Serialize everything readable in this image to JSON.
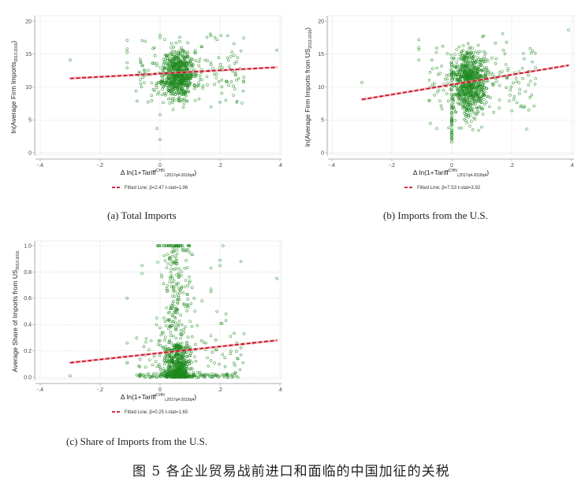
{
  "colors": {
    "marker": "#1f8a1f",
    "fit_line": "#c8102e",
    "fit_glow": "#f4a3a3",
    "grid": "#cfcfcf",
    "axis": "#999999"
  },
  "chart_data": [
    {
      "id": "a",
      "type": "scatter",
      "caption": "(a) Total Imports",
      "ylabel": "ln(Average Firm Imports",
      "ylabel_sub": "2013-2016",
      "ylabel_close": ")",
      "xlabel": "Δ ln(1+Tariff",
      "xlabel_sup": "CHN",
      "xlabel_sub": "i,2017q4-2018q4",
      "xlabel_close": ")",
      "xticks": [
        "-.4",
        "-.2",
        "0",
        ".2",
        ".4"
      ],
      "xtick_values": [
        -0.4,
        -0.2,
        0,
        0.2,
        0.4
      ],
      "yticks": [
        "0",
        "5",
        "10",
        "15",
        "20"
      ],
      "ytick_values": [
        0,
        5,
        10,
        15,
        20
      ],
      "xlim": [
        -0.4,
        0.4
      ],
      "ylim": [
        0,
        20
      ],
      "grid": true,
      "legend": "Fitted Line;  β=2.47  t-stat=1.96",
      "legend_position": "bottom",
      "fitted_line": {
        "x": [
          -0.3,
          0.39
        ],
        "y": [
          11.3,
          13.0
        ],
        "beta": 2.47,
        "t_stat": 1.96
      },
      "cluster": {
        "n": 650,
        "x_center": 0.06,
        "x_spread": 0.025,
        "y_center": 12.0,
        "y_spread": 1.8,
        "seed": 11
      },
      "spread": {
        "n": 160,
        "x_min": -0.08,
        "x_max": 0.28,
        "y_center": 12.5,
        "y_spread": 2.2,
        "seed": 23
      },
      "outliers": [
        [
          -0.3,
          14.1
        ],
        [
          -0.11,
          17.1
        ],
        [
          -0.11,
          15.8
        ],
        [
          -0.11,
          15.3
        ],
        [
          -0.11,
          13.7
        ],
        [
          -0.11,
          12.9
        ],
        [
          -0.08,
          9.4
        ],
        [
          -0.04,
          7.7
        ],
        [
          -0.01,
          3.7
        ],
        [
          0.0,
          2.0
        ],
        [
          0.0,
          5.8
        ],
        [
          0.0,
          17.9
        ],
        [
          0.0,
          17.5
        ],
        [
          0.17,
          17.8
        ],
        [
          0.19,
          17.2
        ],
        [
          0.17,
          7.0
        ],
        [
          0.2,
          7.7
        ],
        [
          0.39,
          15.6
        ],
        [
          0.27,
          15.5
        ],
        [
          0.25,
          9.7
        ],
        [
          0.13,
          8.2
        ],
        [
          0.24,
          15.3
        ],
        [
          0.28,
          11.5
        ]
      ]
    },
    {
      "id": "b",
      "type": "scatter",
      "caption": "(b) Imports from the U.S.",
      "ylabel": "ln(Average Firm Imports from US",
      "ylabel_sub": "2013-2016",
      "ylabel_close": ")",
      "xlabel": "Δ ln(1+Tariff",
      "xlabel_sup": "CHN",
      "xlabel_sub": "i,2017q4-2018q4",
      "xlabel_close": ")",
      "xticks": [
        "-.4",
        "-.2",
        "0",
        ".2",
        ".4"
      ],
      "xtick_values": [
        -0.4,
        -0.2,
        0,
        0.2,
        0.4
      ],
      "yticks": [
        "0",
        "5",
        "10",
        "15",
        "20"
      ],
      "ytick_values": [
        0,
        5,
        10,
        15,
        20
      ],
      "xlim": [
        -0.4,
        0.4
      ],
      "ylim": [
        0,
        20
      ],
      "grid": true,
      "legend": "Fitted Line;  β=7.53  t-stat=3.92",
      "legend_position": "bottom",
      "fitted_line": {
        "x": [
          -0.3,
          0.39
        ],
        "y": [
          8.1,
          13.3
        ],
        "beta": 7.53,
        "t_stat": 3.92
      },
      "cluster": {
        "n": 700,
        "x_center": 0.06,
        "x_spread": 0.025,
        "y_center": 10.8,
        "y_spread": 2.4,
        "seed": 37
      },
      "spread": {
        "n": 170,
        "x_min": -0.08,
        "x_max": 0.28,
        "y_center": 11.0,
        "y_spread": 2.6,
        "seed": 41
      },
      "column_zero": {
        "n": 60,
        "x": 0.0,
        "y_min": 1.5,
        "y_max": 15.5,
        "seed": 53
      },
      "outliers": [
        [
          -0.3,
          10.7
        ],
        [
          -0.11,
          17.2
        ],
        [
          -0.11,
          16.0
        ],
        [
          -0.11,
          15.7
        ],
        [
          -0.11,
          14.1
        ],
        [
          -0.05,
          15.9
        ],
        [
          -0.03,
          16.2
        ],
        [
          -0.05,
          3.7
        ],
        [
          -0.01,
          3.8
        ],
        [
          0.17,
          18.1
        ],
        [
          0.39,
          18.7
        ],
        [
          0.27,
          15.5
        ],
        [
          0.25,
          3.6
        ],
        [
          0.05,
          4.6
        ],
        [
          0.09,
          3.4
        ],
        [
          0.1,
          3.9
        ],
        [
          0.07,
          3.5
        ],
        [
          0.24,
          6.9
        ],
        [
          0.2,
          6.4
        ],
        [
          0.28,
          11.3
        ]
      ]
    },
    {
      "id": "c",
      "type": "scatter",
      "caption": "(c) Share of Imports from the U.S.",
      "ylabel": "Average Share of Imports from US",
      "ylabel_sub": "2013-2016",
      "ylabel_close": "",
      "xlabel": "Δ ln(1+Tariff",
      "xlabel_sup": "CHN",
      "xlabel_sub": "i,2017q4-2018q4",
      "xlabel_close": ")",
      "xticks": [
        "-.4",
        "-.2",
        "0",
        ".2",
        ".4"
      ],
      "xtick_values": [
        -0.4,
        -0.2,
        0,
        0.2,
        0.4
      ],
      "yticks": [
        "0.0",
        "0.2",
        "0.4",
        "0.6",
        "0.8",
        "1.0"
      ],
      "ytick_values": [
        0,
        0.2,
        0.4,
        0.6,
        0.8,
        1.0
      ],
      "xlim": [
        -0.4,
        0.4
      ],
      "ylim": [
        0,
        1.0
      ],
      "grid": true,
      "legend": "Fitted Line;  β=0.25  t-stat=1.65",
      "legend_position": "bottom",
      "fitted_line": {
        "x": [
          -0.3,
          0.39
        ],
        "y": [
          0.11,
          0.28
        ],
        "beta": 0.25,
        "t_stat": 1.65
      },
      "cluster_bottom": {
        "n": 520,
        "x_center": 0.06,
        "x_spread": 0.022,
        "y_max": 0.25,
        "seed": 61
      },
      "cluster_column": {
        "n": 260,
        "x_center": 0.05,
        "x_spread": 0.025,
        "y_min": 0.0,
        "y_max": 1.0,
        "seed": 67
      },
      "top_row": {
        "n": 40,
        "x_min": -0.01,
        "x_max": 0.1,
        "y": 1.0,
        "seed": 71
      },
      "baseline": {
        "n": 90,
        "x_min": -0.08,
        "x_max": 0.25,
        "y_max": 0.03,
        "seed": 73
      },
      "spread": {
        "n": 110,
        "x_min": -0.08,
        "x_max": 0.28,
        "y_center": 0.15,
        "y_spread": 0.12,
        "seed": 79
      },
      "outliers": [
        [
          -0.3,
          0.01
        ],
        [
          -0.11,
          0.6
        ],
        [
          -0.11,
          0.26
        ],
        [
          -0.11,
          0.11
        ],
        [
          -0.11,
          0.11
        ],
        [
          -0.06,
          0.85
        ],
        [
          -0.06,
          0.79
        ],
        [
          0.21,
          1.0
        ],
        [
          0.27,
          0.88
        ],
        [
          0.39,
          0.75
        ],
        [
          0.2,
          0.89
        ],
        [
          0.2,
          0.85
        ],
        [
          0.17,
          0.83
        ],
        [
          0.17,
          0.67
        ],
        [
          0.17,
          0.65
        ],
        [
          0.14,
          0.58
        ],
        [
          0.19,
          0.5
        ],
        [
          0.22,
          0.48
        ],
        [
          0.22,
          0.43
        ],
        [
          0.28,
          0.33
        ],
        [
          0.31,
          0.26
        ],
        [
          0.24,
          0.0
        ],
        [
          0.26,
          0.0
        ],
        [
          0.27,
          0.17
        ],
        [
          0.26,
          0.14
        ]
      ]
    }
  ],
  "figure_title": "图 5  各企业贸易战前进口和面临的中国加征的关税"
}
